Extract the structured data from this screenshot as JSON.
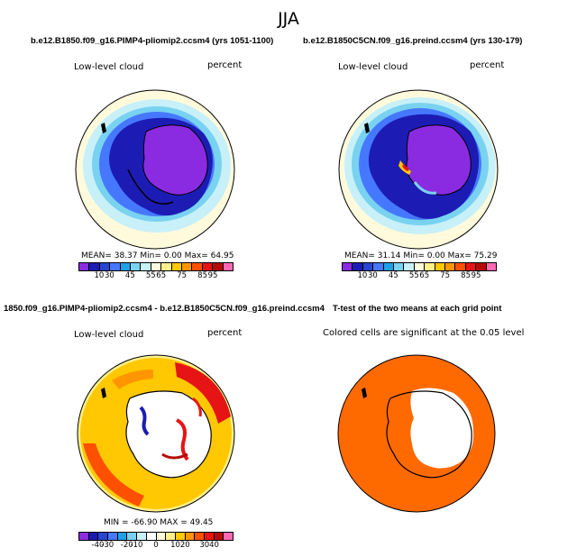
{
  "figure": {
    "title": "JJA"
  },
  "panels": [
    {
      "title": "b.e12.B1850.f09_g16.PIMP4-pliomip2.ccsm4 (yrs 1051-1100)",
      "variable": "Low-level cloud",
      "units": "percent",
      "stats": "MEAN=  38.37  Min=   0.00  Max=  64.95"
    },
    {
      "title": "b.e12.B1850C5CN.f09_g16.preind.ccsm4 (yrs 130-179)",
      "variable": "Low-level cloud",
      "units": "percent",
      "stats": "MEAN=  31.14  Min=   0.00  Max=  75.29"
    },
    {
      "title": "1850.f09_g16.PIMP4-pliomip2.ccsm4 - b.e12.B1850C5CN.f09_g16.preind.ccsm4",
      "variable": "Low-level cloud",
      "units": "percent",
      "stats": "MIN = -66.90  MAX =  49.45"
    },
    {
      "title": "T-test of the two means at each grid point",
      "note": "Colored cells are significant at the 0.05 level"
    }
  ],
  "colorbars": {
    "abs": {
      "ticks": [
        "10",
        "30",
        "45",
        "55",
        "65",
        "75",
        "85",
        "95"
      ],
      "colors": [
        "#8a2be2",
        "#1c1cb4",
        "#2846d2",
        "#4678ff",
        "#1ea0e6",
        "#78d2f0",
        "#c8f0f8",
        "#fffadc",
        "#fff08c",
        "#ffc800",
        "#ff9600",
        "#ff5000",
        "#e61414",
        "#b40a0a",
        "#ff69b4"
      ]
    },
    "diff": {
      "ticks": [
        "-40",
        "-30",
        "-20",
        "-10",
        "0",
        "10",
        "20",
        "30",
        "40"
      ],
      "colors": [
        "#8a2be2",
        "#1c1cb4",
        "#2846d2",
        "#4678ff",
        "#1ea0e6",
        "#78d2f0",
        "#c8f0f8",
        "#ffffff",
        "#fffadc",
        "#fff08c",
        "#ffc800",
        "#ff9600",
        "#ff5000",
        "#e61414",
        "#b40a0a",
        "#ff69b4"
      ]
    }
  },
  "map_colors": {
    "ocean_low": "#fffadc",
    "ring_mid": "#78d2f0",
    "ring_blue": "#4678ff",
    "ring_dark": "#1c1cb4",
    "land": "#8a2be2",
    "diff_red": "#e61414",
    "diff_orange": "#ff9600",
    "diff_yellow": "#ffc800",
    "sig": "#ff6a00"
  }
}
